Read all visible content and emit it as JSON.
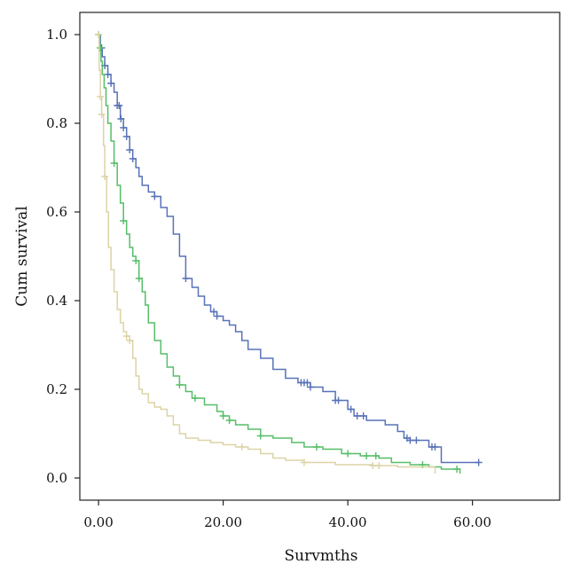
{
  "chart_data": {
    "type": "line",
    "subtype": "kaplan-meier-step",
    "title": "",
    "xlabel": "Survmths",
    "ylabel": "Cum survival",
    "xlim": [
      -3,
      74
    ],
    "ylim": [
      -0.05,
      1.05
    ],
    "x_ticks": [
      0,
      20,
      40,
      60
    ],
    "x_tick_labels": [
      "0.00",
      "20.00",
      "40.00",
      "60.00"
    ],
    "y_ticks": [
      0.0,
      0.2,
      0.4,
      0.6,
      0.8,
      1.0
    ],
    "y_tick_labels": [
      "0.0",
      "0.2",
      "0.4",
      "0.6",
      "0.8",
      "1.0"
    ],
    "grid": false,
    "legend": "none",
    "series": [
      {
        "color": "#5872b8",
        "points": [
          [
            0,
            1.0
          ],
          [
            0.3,
            0.97
          ],
          [
            0.6,
            0.95
          ],
          [
            1.0,
            0.93
          ],
          [
            1.5,
            0.91
          ],
          [
            2.0,
            0.89
          ],
          [
            2.5,
            0.87
          ],
          [
            3.0,
            0.84
          ],
          [
            3.5,
            0.81
          ],
          [
            4.0,
            0.79
          ],
          [
            4.5,
            0.77
          ],
          [
            5.0,
            0.74
          ],
          [
            5.5,
            0.72
          ],
          [
            6.0,
            0.7
          ],
          [
            6.5,
            0.68
          ],
          [
            7.0,
            0.66
          ],
          [
            8.0,
            0.645
          ],
          [
            9.0,
            0.635
          ],
          [
            10.0,
            0.61
          ],
          [
            11.0,
            0.59
          ],
          [
            12.0,
            0.55
          ],
          [
            13.0,
            0.5
          ],
          [
            14.0,
            0.45
          ],
          [
            15.0,
            0.43
          ],
          [
            16.0,
            0.41
          ],
          [
            17.0,
            0.39
          ],
          [
            18.0,
            0.375
          ],
          [
            19.0,
            0.365
          ],
          [
            20.0,
            0.355
          ],
          [
            21.0,
            0.345
          ],
          [
            22.0,
            0.33
          ],
          [
            23.0,
            0.31
          ],
          [
            24.0,
            0.29
          ],
          [
            26.0,
            0.27
          ],
          [
            28.0,
            0.245
          ],
          [
            30.0,
            0.225
          ],
          [
            32.0,
            0.215
          ],
          [
            34.0,
            0.205
          ],
          [
            36.0,
            0.195
          ],
          [
            38.0,
            0.175
          ],
          [
            40.0,
            0.155
          ],
          [
            41.0,
            0.14
          ],
          [
            43.0,
            0.13
          ],
          [
            46.0,
            0.12
          ],
          [
            48.0,
            0.105
          ],
          [
            49.0,
            0.09
          ],
          [
            50.0,
            0.085
          ],
          [
            52.0,
            0.085
          ],
          [
            53.0,
            0.07
          ],
          [
            54.0,
            0.07
          ],
          [
            55.0,
            0.035
          ],
          [
            61.0,
            0.035
          ]
        ],
        "censor_x": [
          0.5,
          1.0,
          1.5,
          2.0,
          3.0,
          3.3,
          3.6,
          4.0,
          4.5,
          5.0,
          5.5,
          9.0,
          14.0,
          18.5,
          19.0,
          32.5,
          33.0,
          33.5,
          34.0,
          38.0,
          38.5,
          40.5,
          41.5,
          42.5,
          49.5,
          50.0,
          51.0,
          53.5,
          54.0,
          61.0
        ]
      },
      {
        "color": "#56be68",
        "points": [
          [
            0,
            1.0
          ],
          [
            0.2,
            0.97
          ],
          [
            0.4,
            0.94
          ],
          [
            0.6,
            0.91
          ],
          [
            0.9,
            0.88
          ],
          [
            1.2,
            0.84
          ],
          [
            1.5,
            0.8
          ],
          [
            2.0,
            0.76
          ],
          [
            2.5,
            0.71
          ],
          [
            3.0,
            0.66
          ],
          [
            3.5,
            0.62
          ],
          [
            4.0,
            0.58
          ],
          [
            4.5,
            0.55
          ],
          [
            5.0,
            0.52
          ],
          [
            5.5,
            0.5
          ],
          [
            6.0,
            0.49
          ],
          [
            6.5,
            0.45
          ],
          [
            7.0,
            0.42
          ],
          [
            7.5,
            0.39
          ],
          [
            8.0,
            0.35
          ],
          [
            9.0,
            0.31
          ],
          [
            10.0,
            0.28
          ],
          [
            11.0,
            0.25
          ],
          [
            12.0,
            0.23
          ],
          [
            13.0,
            0.21
          ],
          [
            14.0,
            0.195
          ],
          [
            15.0,
            0.18
          ],
          [
            17.0,
            0.165
          ],
          [
            19.0,
            0.15
          ],
          [
            20.0,
            0.14
          ],
          [
            21.0,
            0.13
          ],
          [
            22.0,
            0.12
          ],
          [
            24.0,
            0.11
          ],
          [
            26.0,
            0.095
          ],
          [
            28.0,
            0.09
          ],
          [
            31.0,
            0.08
          ],
          [
            33.0,
            0.07
          ],
          [
            36.0,
            0.065
          ],
          [
            39.0,
            0.055
          ],
          [
            42.0,
            0.05
          ],
          [
            45.0,
            0.045
          ],
          [
            47.0,
            0.035
          ],
          [
            50.0,
            0.03
          ],
          [
            53.0,
            0.025
          ],
          [
            55.0,
            0.02
          ],
          [
            58.0,
            0.02
          ],
          [
            58.0,
            0.01
          ]
        ],
        "censor_x": [
          0.0,
          0.3,
          2.5,
          4.0,
          6.0,
          6.5,
          13.0,
          15.5,
          20.0,
          21.0,
          26.0,
          35.0,
          40.0,
          43.0,
          44.5,
          52.0,
          57.5
        ]
      },
      {
        "color": "#dcd3a6",
        "points": [
          [
            0,
            1.0
          ],
          [
            0.1,
            0.92
          ],
          [
            0.3,
            0.86
          ],
          [
            0.5,
            0.82
          ],
          [
            0.8,
            0.75
          ],
          [
            1.0,
            0.68
          ],
          [
            1.3,
            0.6
          ],
          [
            1.6,
            0.52
          ],
          [
            2.0,
            0.47
          ],
          [
            2.5,
            0.42
          ],
          [
            3.0,
            0.38
          ],
          [
            3.5,
            0.35
          ],
          [
            4.0,
            0.33
          ],
          [
            4.5,
            0.32
          ],
          [
            5.0,
            0.31
          ],
          [
            5.5,
            0.27
          ],
          [
            6.0,
            0.23
          ],
          [
            6.5,
            0.2
          ],
          [
            7.0,
            0.19
          ],
          [
            8.0,
            0.17
          ],
          [
            9.0,
            0.16
          ],
          [
            10.0,
            0.155
          ],
          [
            11.0,
            0.14
          ],
          [
            12.0,
            0.12
          ],
          [
            13.0,
            0.1
          ],
          [
            14.0,
            0.09
          ],
          [
            16.0,
            0.085
          ],
          [
            18.0,
            0.08
          ],
          [
            20.0,
            0.075
          ],
          [
            22.0,
            0.07
          ],
          [
            24.0,
            0.065
          ],
          [
            26.0,
            0.055
          ],
          [
            28.0,
            0.045
          ],
          [
            30.0,
            0.04
          ],
          [
            33.0,
            0.035
          ],
          [
            38.0,
            0.03
          ],
          [
            44.0,
            0.028
          ],
          [
            48.0,
            0.025
          ],
          [
            54.0,
            0.025
          ],
          [
            54.0,
            0.01
          ]
        ],
        "censor_x": [
          0.0,
          0.3,
          0.5,
          1.0,
          4.5,
          5.0,
          23.0,
          33.0,
          44.0,
          45.0
        ]
      }
    ]
  }
}
